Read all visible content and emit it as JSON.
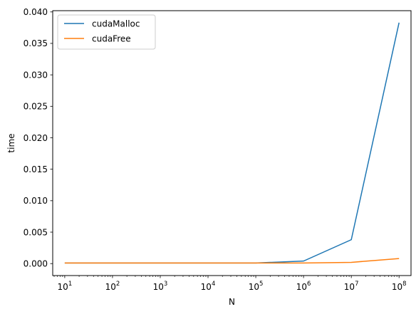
{
  "chart_data": {
    "type": "line",
    "title": "",
    "xlabel": "N",
    "ylabel": "time",
    "xscale": "log",
    "x": [
      10,
      100,
      1000,
      10000,
      100000,
      1000000,
      10000000,
      100000000
    ],
    "xlim": [
      5.6,
      178000000
    ],
    "ylim": [
      -0.0019,
      0.0402
    ],
    "grid": false,
    "legend_position": "top-left",
    "series": [
      {
        "name": "cudaMalloc",
        "color": "#1f77b4",
        "values": [
          0.0001,
          0.0001,
          0.0001,
          0.0001,
          0.0001,
          0.0004,
          0.0038,
          0.0383
        ]
      },
      {
        "name": "cudaFree",
        "color": "#ff7f0e",
        "values": [
          0.0001,
          0.0001,
          0.0001,
          0.0001,
          0.0001,
          0.0001,
          0.0002,
          0.0008
        ]
      }
    ],
    "x_ticks": [
      {
        "value": 10,
        "base": "10",
        "exp": "1"
      },
      {
        "value": 100,
        "base": "10",
        "exp": "2"
      },
      {
        "value": 1000,
        "base": "10",
        "exp": "3"
      },
      {
        "value": 10000,
        "base": "10",
        "exp": "4"
      },
      {
        "value": 100000,
        "base": "10",
        "exp": "5"
      },
      {
        "value": 1000000,
        "base": "10",
        "exp": "6"
      },
      {
        "value": 10000000,
        "base": "10",
        "exp": "7"
      },
      {
        "value": 100000000,
        "base": "10",
        "exp": "8"
      }
    ],
    "y_ticks": [
      {
        "value": 0.0,
        "label": "0.000"
      },
      {
        "value": 0.005,
        "label": "0.005"
      },
      {
        "value": 0.01,
        "label": "0.010"
      },
      {
        "value": 0.015,
        "label": "0.015"
      },
      {
        "value": 0.02,
        "label": "0.020"
      },
      {
        "value": 0.025,
        "label": "0.025"
      },
      {
        "value": 0.03,
        "label": "0.030"
      },
      {
        "value": 0.035,
        "label": "0.035"
      },
      {
        "value": 0.04,
        "label": "0.040"
      }
    ]
  }
}
